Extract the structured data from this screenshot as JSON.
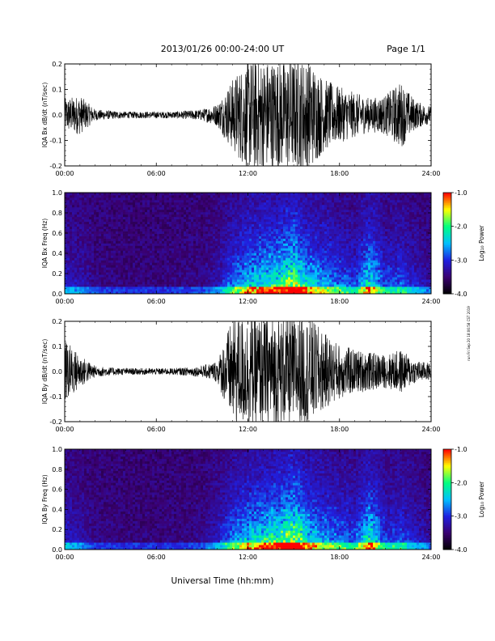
{
  "header": {
    "date_range": "2013/01/26  00:00-24:00 UT",
    "page": "Page 1/1"
  },
  "footer": {
    "xlabel": "Universal Time (hh:mm)",
    "side_note": "run Fri Sep 20 18:06:58 CST 2019"
  },
  "colorbar": {
    "label": "Log₁₀ Power",
    "ticks": [
      "-1.0",
      "-2.0",
      "-3.0",
      "-4.0"
    ],
    "range": [
      -4.0,
      -1.0
    ],
    "colors": [
      "#000000",
      "#3a0070",
      "#2020e0",
      "#00c0ff",
      "#00ff80",
      "#ffff00",
      "#ff0000"
    ]
  },
  "x_ticks": [
    "00:00",
    "06:00",
    "12:00",
    "18:00",
    "24:00"
  ],
  "chart_data": [
    {
      "type": "line",
      "panel": "bx_waveform",
      "ylabel": "IQA Bx dB/dt (nT/sec)",
      "ylim": [
        -0.2,
        0.2
      ],
      "y_ticks": [
        "0.2",
        "0.1",
        "0.0",
        "-0.1",
        "-0.2"
      ],
      "xlim_hours": [
        0,
        24
      ],
      "series": [
        {
          "x_hours": [
            0,
            1,
            2,
            3,
            4,
            5,
            6,
            7,
            8,
            9,
            10,
            11,
            12,
            13,
            14,
            15,
            16,
            17,
            18,
            19,
            20,
            21,
            22,
            23,
            24
          ],
          "amplitude": [
            0.06,
            0.07,
            0.02,
            0.015,
            0.012,
            0.012,
            0.012,
            0.012,
            0.015,
            0.02,
            0.04,
            0.13,
            0.2,
            0.2,
            0.2,
            0.2,
            0.2,
            0.13,
            0.1,
            0.08,
            0.06,
            0.07,
            0.12,
            0.05,
            0.03
          ]
        }
      ]
    },
    {
      "type": "heatmap",
      "panel": "bx_spectrogram",
      "ylabel": "IQA Bx Freq (Hz)",
      "ylim": [
        0.0,
        1.0
      ],
      "y_ticks": [
        "1.0",
        "0.8",
        "0.6",
        "0.4",
        "0.2",
        "0.0"
      ],
      "xlim_hours": [
        0,
        24
      ],
      "zlim": [
        -4.0,
        -1.0
      ],
      "activity_hours": [
        0,
        1,
        2,
        3,
        4,
        5,
        6,
        7,
        8,
        9,
        10,
        11,
        12,
        13,
        14,
        15,
        16,
        17,
        18,
        19,
        20,
        21,
        22,
        23,
        24
      ],
      "activity": [
        0.2,
        0.15,
        0.05,
        0.03,
        0.02,
        0.02,
        0.02,
        0.03,
        0.04,
        0.06,
        0.15,
        0.4,
        0.6,
        0.7,
        0.75,
        1.0,
        0.6,
        0.5,
        0.4,
        0.3,
        0.7,
        0.3,
        0.35,
        0.2,
        0.1
      ]
    },
    {
      "type": "line",
      "panel": "by_waveform",
      "ylabel": "IQA By dB/dt (nT/sec)",
      "ylim": [
        -0.2,
        0.2
      ],
      "y_ticks": [
        "0.2",
        "0.1",
        "0.0",
        "-0.1",
        "-0.2"
      ],
      "xlim_hours": [
        0,
        24
      ],
      "series": [
        {
          "x_hours": [
            0,
            1,
            2,
            3,
            4,
            5,
            6,
            7,
            8,
            9,
            10,
            11,
            12,
            13,
            14,
            15,
            16,
            17,
            18,
            19,
            20,
            21,
            22,
            23,
            24
          ],
          "amplitude": [
            0.12,
            0.06,
            0.02,
            0.015,
            0.012,
            0.012,
            0.012,
            0.012,
            0.015,
            0.02,
            0.04,
            0.2,
            0.2,
            0.2,
            0.2,
            0.2,
            0.2,
            0.14,
            0.1,
            0.08,
            0.07,
            0.06,
            0.08,
            0.04,
            0.03
          ]
        }
      ]
    },
    {
      "type": "heatmap",
      "panel": "by_spectrogram",
      "ylabel": "IQA By Freq (Hz)",
      "ylim": [
        0.0,
        1.0
      ],
      "y_ticks": [
        "1.0",
        "0.8",
        "0.6",
        "0.4",
        "0.2",
        "0.0"
      ],
      "xlim_hours": [
        0,
        24
      ],
      "zlim": [
        -4.0,
        -1.0
      ],
      "activity_hours": [
        0,
        1,
        2,
        3,
        4,
        5,
        6,
        7,
        8,
        9,
        10,
        11,
        12,
        13,
        14,
        15,
        16,
        17,
        18,
        19,
        20,
        21,
        22,
        23,
        24
      ],
      "activity": [
        0.25,
        0.15,
        0.05,
        0.03,
        0.02,
        0.02,
        0.02,
        0.03,
        0.04,
        0.06,
        0.2,
        0.45,
        0.6,
        0.7,
        0.8,
        1.0,
        0.65,
        0.5,
        0.4,
        0.35,
        0.75,
        0.3,
        0.35,
        0.2,
        0.1
      ]
    }
  ]
}
